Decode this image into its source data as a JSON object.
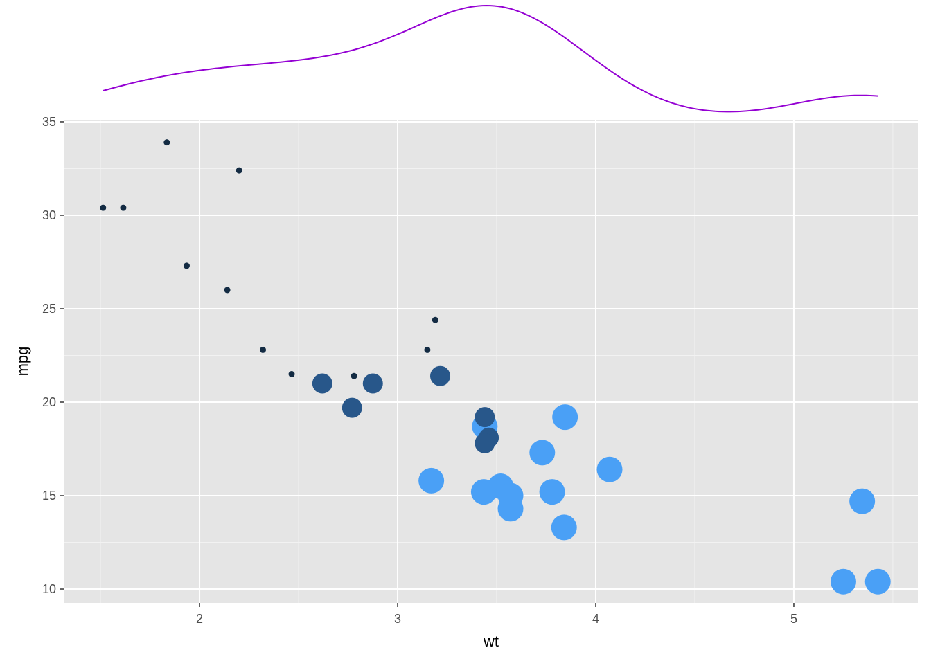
{
  "chart_data": {
    "type": "scatter",
    "xlabel": "wt",
    "ylabel": "mpg",
    "xlim": [
      1.318,
      5.626
    ],
    "ylim": [
      9.26,
      35.11
    ],
    "x_ticks": [
      2,
      3,
      4,
      5
    ],
    "y_ticks": [
      10,
      15,
      20,
      25,
      30,
      35
    ],
    "x_tick_labels": [
      "2",
      "3",
      "4",
      "5"
    ],
    "y_tick_labels": [
      "10",
      "15",
      "20",
      "25",
      "30",
      "35"
    ],
    "grid": true,
    "legend": "none",
    "panel_background": "#E5E5E5",
    "marginal": {
      "position": "top",
      "type": "density",
      "variable": "wt",
      "color": "#9400D3"
    },
    "groups": [
      {
        "group": "4",
        "color": "#132B43",
        "size": "small"
      },
      {
        "group": "6",
        "color": "#28578A",
        "size": "medium"
      },
      {
        "group": "8",
        "color": "#4AA0F6",
        "size": "large"
      }
    ],
    "points": [
      {
        "x": 2.62,
        "y": 21.0,
        "g": "6"
      },
      {
        "x": 2.875,
        "y": 21.0,
        "g": "6"
      },
      {
        "x": 2.32,
        "y": 22.8,
        "g": "4"
      },
      {
        "x": 3.215,
        "y": 21.4,
        "g": "6"
      },
      {
        "x": 3.44,
        "y": 18.7,
        "g": "8"
      },
      {
        "x": 3.46,
        "y": 18.1,
        "g": "6"
      },
      {
        "x": 3.57,
        "y": 14.3,
        "g": "8"
      },
      {
        "x": 3.19,
        "y": 24.4,
        "g": "4"
      },
      {
        "x": 3.15,
        "y": 22.8,
        "g": "4"
      },
      {
        "x": 3.44,
        "y": 19.2,
        "g": "6"
      },
      {
        "x": 3.44,
        "y": 17.8,
        "g": "6"
      },
      {
        "x": 4.07,
        "y": 16.4,
        "g": "8"
      },
      {
        "x": 3.73,
        "y": 17.3,
        "g": "8"
      },
      {
        "x": 3.78,
        "y": 15.2,
        "g": "8"
      },
      {
        "x": 5.25,
        "y": 10.4,
        "g": "8"
      },
      {
        "x": 5.424,
        "y": 10.4,
        "g": "8"
      },
      {
        "x": 5.345,
        "y": 14.7,
        "g": "8"
      },
      {
        "x": 2.2,
        "y": 32.4,
        "g": "4"
      },
      {
        "x": 1.615,
        "y": 30.4,
        "g": "4"
      },
      {
        "x": 1.835,
        "y": 33.9,
        "g": "4"
      },
      {
        "x": 2.465,
        "y": 21.5,
        "g": "4"
      },
      {
        "x": 3.52,
        "y": 15.5,
        "g": "8"
      },
      {
        "x": 3.435,
        "y": 15.2,
        "g": "8"
      },
      {
        "x": 3.84,
        "y": 13.3,
        "g": "8"
      },
      {
        "x": 3.845,
        "y": 19.2,
        "g": "8"
      },
      {
        "x": 1.935,
        "y": 27.3,
        "g": "4"
      },
      {
        "x": 2.14,
        "y": 26.0,
        "g": "4"
      },
      {
        "x": 1.513,
        "y": 30.4,
        "g": "4"
      },
      {
        "x": 3.17,
        "y": 15.8,
        "g": "8"
      },
      {
        "x": 2.77,
        "y": 19.7,
        "g": "6"
      },
      {
        "x": 3.57,
        "y": 15.0,
        "g": "8"
      },
      {
        "x": 2.78,
        "y": 21.4,
        "g": "4"
      }
    ]
  }
}
